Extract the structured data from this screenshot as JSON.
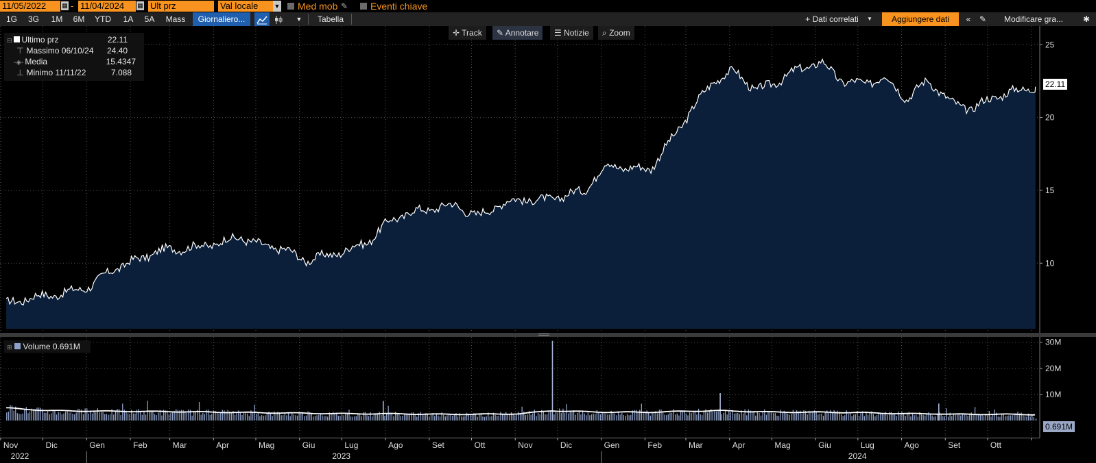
{
  "toolbar": {
    "date_start": "11/05/2022",
    "date_sep": "-",
    "date_end": "11/04/2024",
    "field": "Ult prz",
    "currency": "Val locale",
    "moving_avg_label": "Med mob",
    "events_label": "Eventi chiave",
    "periods": [
      "1G",
      "3G",
      "1M",
      "6M",
      "YTD",
      "1A",
      "5A",
      "Mass"
    ],
    "frequency": "Giornaliero...",
    "table_label": "Tabella",
    "related_data": "+ Dati correlati",
    "add_data": "Aggiungere dati",
    "edit_chart": "Modificare gra..."
  },
  "chart_tools": [
    "Track",
    "Annotare",
    "Notizie",
    "Zoom"
  ],
  "legend": {
    "last_label": "Ultimo prz",
    "last_value": "22.11",
    "high_label": "Massimo 06/10/24",
    "high_value": "24.40",
    "avg_label": "Media",
    "avg_value": "15.4347",
    "low_label": "Minimo 11/11/22",
    "low_value": "7.088"
  },
  "volume_legend": "Volume 0.691M",
  "price_tag": "22.11",
  "volume_tag": "0.691M",
  "colors": {
    "accent": "#f7931e",
    "area_fill": "#0b1f3a",
    "price_line": "#ffffff",
    "volume_bar": "#8ea0c8",
    "selected": "#1f5fae"
  },
  "chart_data": [
    {
      "type": "area",
      "series": [
        {
          "name": "Ultimo prz"
        }
      ],
      "y_ticks": [
        "25",
        "20",
        "15",
        "10"
      ],
      "ylim": [
        5.5,
        26
      ],
      "x": [
        "2022-11-05",
        "2022-11-20",
        "2022-12-05",
        "2022-12-20",
        "2023-01-05",
        "2023-01-20",
        "2023-02-05",
        "2023-02-20",
        "2023-03-05",
        "2023-03-20",
        "2023-04-05",
        "2023-04-20",
        "2023-05-05",
        "2023-05-20",
        "2023-06-05",
        "2023-06-20",
        "2023-07-05",
        "2023-07-20",
        "2023-08-05",
        "2023-08-20",
        "2023-09-05",
        "2023-09-20",
        "2023-10-05",
        "2023-10-20",
        "2023-11-05",
        "2023-11-20",
        "2023-12-05",
        "2023-12-20",
        "2024-01-05",
        "2024-01-20",
        "2024-02-05",
        "2024-02-20",
        "2024-03-05",
        "2024-03-20",
        "2024-04-05",
        "2024-04-20",
        "2024-05-05",
        "2024-05-20",
        "2024-06-05",
        "2024-06-20",
        "2024-07-05",
        "2024-07-20",
        "2024-08-05",
        "2024-08-20",
        "2024-09-05",
        "2024-09-20",
        "2024-10-05",
        "2024-10-20",
        "2024-11-04"
      ],
      "values": [
        7.2,
        7.6,
        7.8,
        8.0,
        8.5,
        9.6,
        10.2,
        10.8,
        11.0,
        11.1,
        11.4,
        11.8,
        11.2,
        11.0,
        10.2,
        10.5,
        10.9,
        11.5,
        13.0,
        13.5,
        13.8,
        14.0,
        13.2,
        14.0,
        14.4,
        14.3,
        14.6,
        15.0,
        16.8,
        16.5,
        16.5,
        18.5,
        20.5,
        22.5,
        23.2,
        21.8,
        22.5,
        23.3,
        23.8,
        22.5,
        22.3,
        22.8,
        21.3,
        22.6,
        21.0,
        20.6,
        21.4,
        21.8,
        22.11
      ]
    },
    {
      "type": "bar",
      "series": [
        {
          "name": "Volume"
        }
      ],
      "y_ticks": [
        "30M",
        "20M",
        "10M"
      ],
      "ylim": [
        0,
        32
      ],
      "unit": "M",
      "x": [
        "2022-11-05",
        "2022-12-05",
        "2023-01-05",
        "2023-02-05",
        "2023-03-05",
        "2023-04-05",
        "2023-05-05",
        "2023-06-05",
        "2023-07-05",
        "2023-07-30",
        "2023-08-05",
        "2023-09-05",
        "2023-10-05",
        "2023-11-05",
        "2023-11-27",
        "2023-12-05",
        "2024-01-05",
        "2024-02-05",
        "2024-03-05",
        "2024-03-25",
        "2024-04-05",
        "2024-05-05",
        "2024-06-05",
        "2024-07-05",
        "2024-08-05",
        "2024-08-27",
        "2024-09-05",
        "2024-10-05",
        "2024-11-04"
      ],
      "values": [
        4.0,
        3.0,
        3.2,
        3.6,
        3.5,
        3.2,
        3.0,
        2.8,
        2.6,
        7.5,
        2.8,
        2.4,
        2.4,
        2.6,
        30.5,
        3.0,
        2.8,
        3.0,
        4.0,
        10.5,
        3.8,
        3.2,
        3.0,
        2.8,
        2.4,
        6.5,
        2.2,
        2.6,
        0.691
      ],
      "moving_average": [
        4.8,
        3.8,
        3.6,
        3.5,
        3.4,
        3.2,
        3.0,
        2.8,
        2.6,
        2.6,
        2.6,
        2.4,
        2.4,
        2.6,
        3.8,
        3.6,
        3.2,
        3.2,
        3.6,
        3.8,
        3.6,
        3.2,
        3.2,
        3.0,
        2.6,
        2.6,
        2.4,
        2.4,
        2.3
      ]
    }
  ],
  "x_axis": {
    "months": [
      "Nov",
      "Dic",
      "Gen",
      "Feb",
      "Mar",
      "Apr",
      "Mag",
      "Giu",
      "Lug",
      "Ago",
      "Set",
      "Ott",
      "Nov",
      "Dic",
      "Gen",
      "Feb",
      "Mar",
      "Apr",
      "Mag",
      "Giu",
      "Lug",
      "Ago",
      "Set",
      "Ott"
    ],
    "years": [
      "2022",
      "2023",
      "2024"
    ]
  }
}
